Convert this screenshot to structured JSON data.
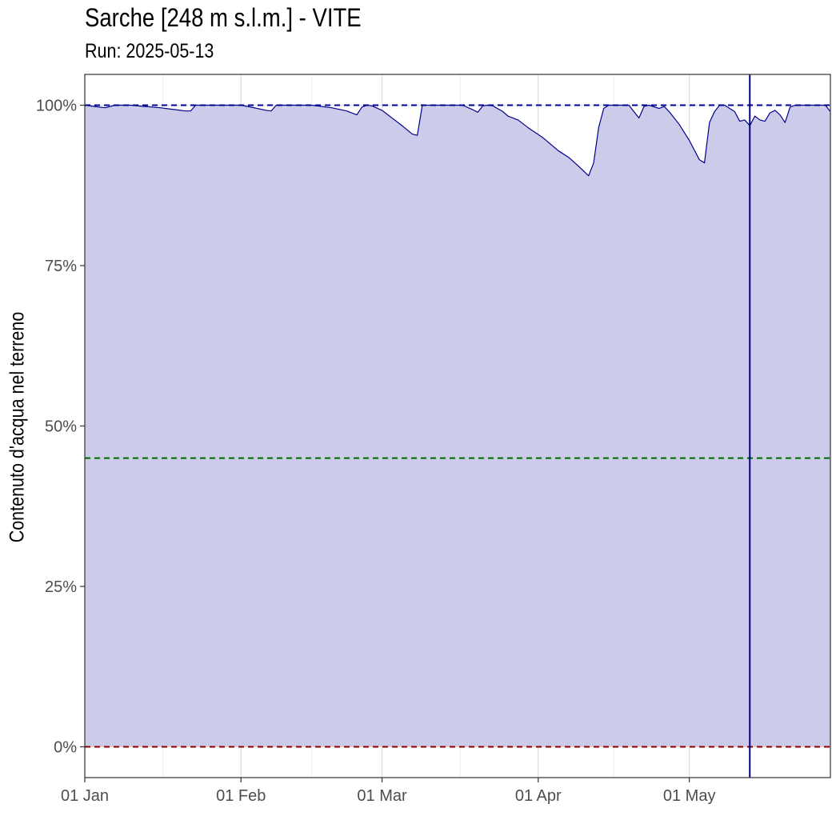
{
  "chart_data": {
    "type": "area",
    "title": "Sarche [248 m s.l.m.] - VITE",
    "subtitle": "Run: 2025-05-13",
    "xlabel": "",
    "ylabel": "Contenuto d'acqua nel terreno",
    "x_type": "date",
    "xlim": [
      "2025-01-01",
      "2025-05-29"
    ],
    "ylim": [
      -0.048,
      1.048
    ],
    "x_ticks": [
      {
        "date": "2025-01-01",
        "label": "01 Jan"
      },
      {
        "date": "2025-02-01",
        "label": "01 Feb"
      },
      {
        "date": "2025-03-01",
        "label": "01 Mar"
      },
      {
        "date": "2025-04-01",
        "label": "01 Apr"
      },
      {
        "date": "2025-05-01",
        "label": "01 May"
      }
    ],
    "y_ticks": [
      {
        "value": 0,
        "label": "0%"
      },
      {
        "value": 0.25,
        "label": "25%"
      },
      {
        "value": 0.5,
        "label": "50%"
      },
      {
        "value": 0.75,
        "label": "75%"
      },
      {
        "value": 1.0,
        "label": "100%"
      }
    ],
    "grid": true,
    "reference_lines": [
      {
        "type": "horizontal",
        "value": 1.0,
        "style": "dashed",
        "color": "#00008b"
      },
      {
        "type": "horizontal",
        "value": 0.45,
        "style": "dashed",
        "color": "#006400"
      },
      {
        "type": "horizontal",
        "value": 0.0,
        "style": "dashed",
        "color": "#8b0000"
      },
      {
        "type": "vertical",
        "date": "2025-05-13",
        "style": "solid",
        "color": "#00008b"
      }
    ],
    "series": [
      {
        "color": "#00008b",
        "fill": "#ccccea",
        "points": [
          [
            "2025-01-01",
            1.0
          ],
          [
            "2025-01-03",
            0.998
          ],
          [
            "2025-01-05",
            0.996
          ],
          [
            "2025-01-07",
            1.0
          ],
          [
            "2025-01-10",
            1.0
          ],
          [
            "2025-01-13",
            0.998
          ],
          [
            "2025-01-16",
            0.996
          ],
          [
            "2025-01-19",
            0.993
          ],
          [
            "2025-01-21",
            0.991
          ],
          [
            "2025-01-22",
            0.991
          ],
          [
            "2025-01-23",
            1.0
          ],
          [
            "2025-01-28",
            1.0
          ],
          [
            "2025-02-01",
            1.0
          ],
          [
            "2025-02-03",
            0.997
          ],
          [
            "2025-02-06",
            0.992
          ],
          [
            "2025-02-07",
            0.991
          ],
          [
            "2025-02-08",
            1.0
          ],
          [
            "2025-02-12",
            1.0
          ],
          [
            "2025-02-15",
            1.0
          ],
          [
            "2025-02-19",
            0.996
          ],
          [
            "2025-02-22",
            0.991
          ],
          [
            "2025-02-24",
            0.985
          ],
          [
            "2025-02-25",
            0.997
          ],
          [
            "2025-02-26",
            1.0
          ],
          [
            "2025-02-27",
            0.999
          ],
          [
            "2025-03-01",
            0.992
          ],
          [
            "2025-03-03",
            0.98
          ],
          [
            "2025-03-05",
            0.968
          ],
          [
            "2025-03-07",
            0.955
          ],
          [
            "2025-03-08",
            0.953
          ],
          [
            "2025-03-09",
            1.0
          ],
          [
            "2025-03-12",
            1.0
          ],
          [
            "2025-03-15",
            1.0
          ],
          [
            "2025-03-17",
            1.0
          ],
          [
            "2025-03-19",
            0.993
          ],
          [
            "2025-03-20",
            0.989
          ],
          [
            "2025-03-21",
            0.999
          ],
          [
            "2025-03-22",
            1.0
          ],
          [
            "2025-03-23",
            0.999
          ],
          [
            "2025-03-25",
            0.99
          ],
          [
            "2025-03-26",
            0.983
          ],
          [
            "2025-03-28",
            0.977
          ],
          [
            "2025-03-30",
            0.965
          ],
          [
            "2025-04-02",
            0.949
          ],
          [
            "2025-04-05",
            0.929
          ],
          [
            "2025-04-07",
            0.919
          ],
          [
            "2025-04-09",
            0.905
          ],
          [
            "2025-04-11",
            0.89
          ],
          [
            "2025-04-12",
            0.91
          ],
          [
            "2025-04-13",
            0.965
          ],
          [
            "2025-04-14",
            0.995
          ],
          [
            "2025-04-15",
            1.0
          ],
          [
            "2025-04-19",
            1.0
          ],
          [
            "2025-04-21",
            0.98
          ],
          [
            "2025-04-22",
            0.998
          ],
          [
            "2025-04-23",
            1.0
          ],
          [
            "2025-04-25",
            0.995
          ],
          [
            "2025-04-26",
            0.998
          ],
          [
            "2025-04-27",
            0.99
          ],
          [
            "2025-04-29",
            0.97
          ],
          [
            "2025-05-01",
            0.945
          ],
          [
            "2025-05-02",
            0.93
          ],
          [
            "2025-05-03",
            0.915
          ],
          [
            "2025-05-04",
            0.91
          ],
          [
            "2025-05-05",
            0.973
          ],
          [
            "2025-05-06",
            0.99
          ],
          [
            "2025-05-07",
            1.0
          ],
          [
            "2025-05-08",
            1.0
          ],
          [
            "2025-05-10",
            0.99
          ],
          [
            "2025-05-11",
            0.975
          ],
          [
            "2025-05-12",
            0.977
          ],
          [
            "2025-05-13",
            0.968
          ],
          [
            "2025-05-14",
            0.983
          ],
          [
            "2025-05-15",
            0.977
          ],
          [
            "2025-05-16",
            0.975
          ],
          [
            "2025-05-17",
            0.988
          ],
          [
            "2025-05-18",
            0.992
          ],
          [
            "2025-05-19",
            0.985
          ],
          [
            "2025-05-20",
            0.973
          ],
          [
            "2025-05-21",
            0.997
          ],
          [
            "2025-05-22",
            1.0
          ],
          [
            "2025-05-28",
            1.0
          ],
          [
            "2025-05-29",
            0.99
          ]
        ]
      }
    ]
  }
}
